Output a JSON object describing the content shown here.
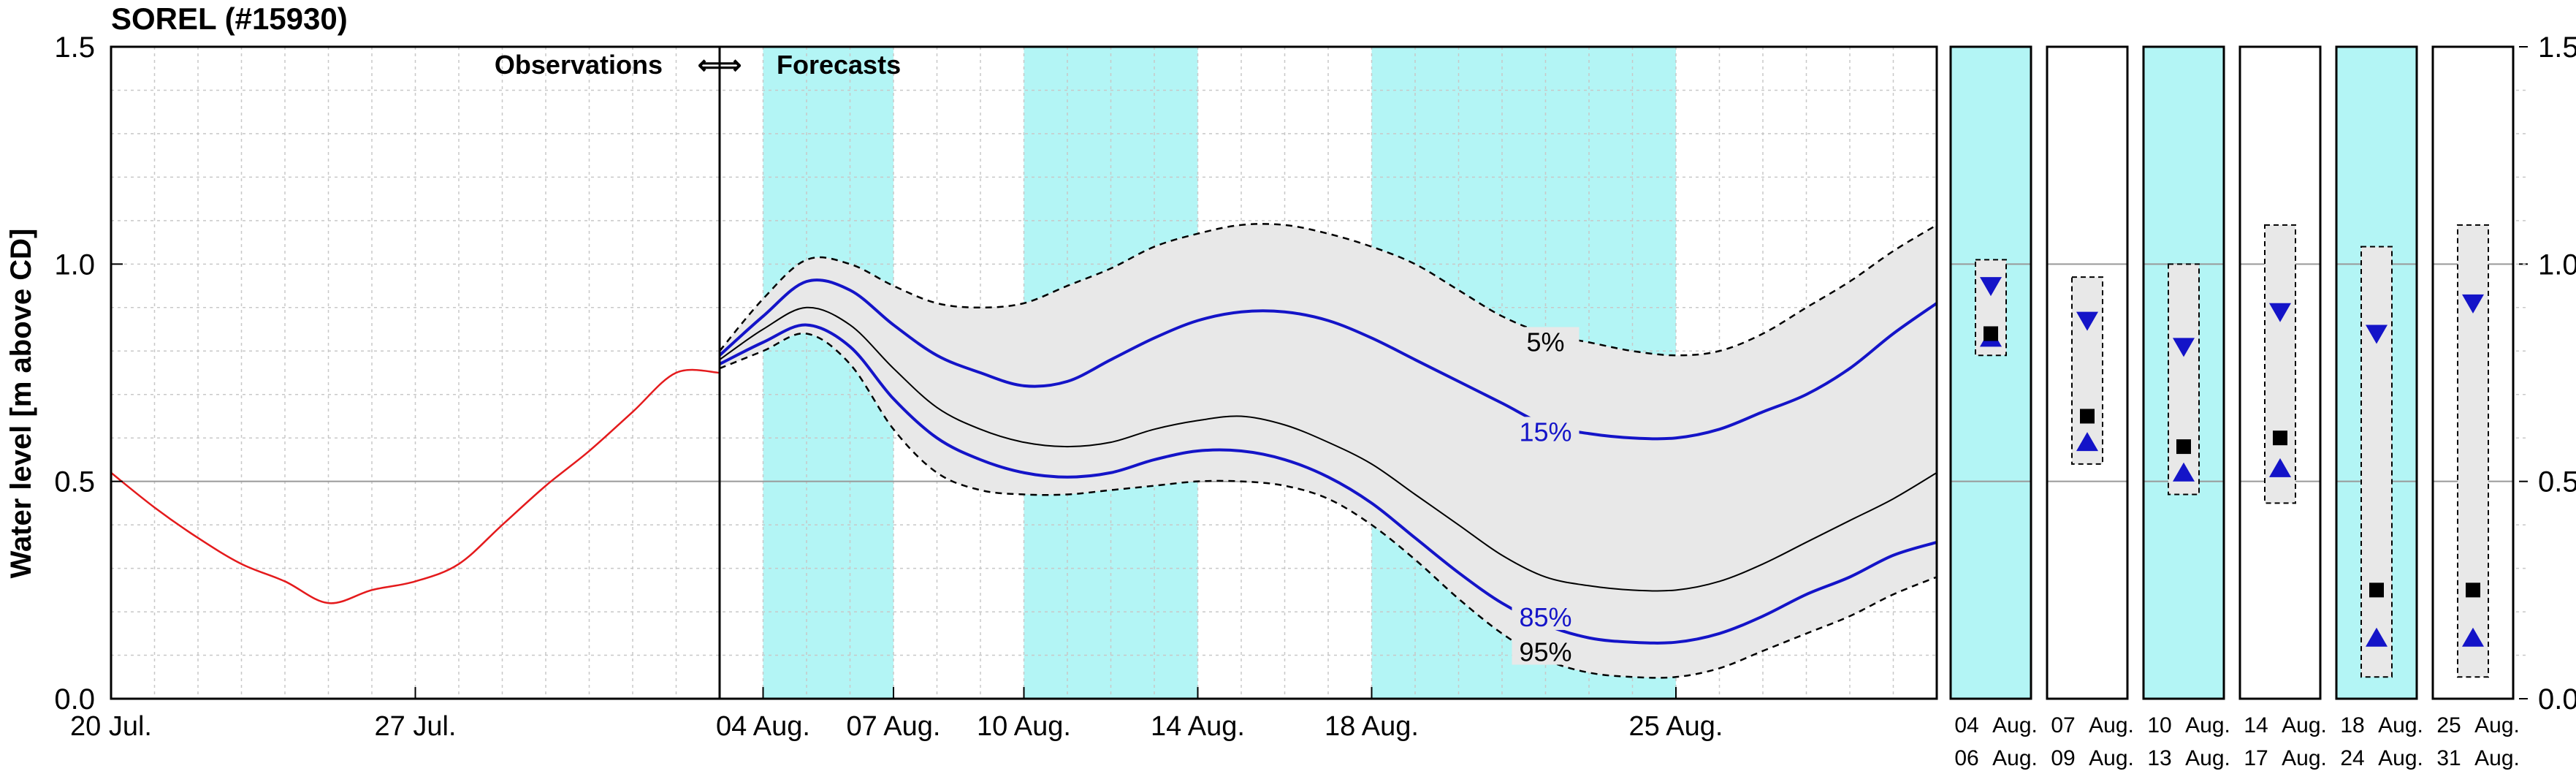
{
  "chart_data": {
    "type": "line",
    "title": "SOREL (#15930)",
    "ylabel": "Water level [m above CD]",
    "ylim": [
      0,
      1.5
    ],
    "yticks": [
      "0.0",
      "0.5",
      "1.0",
      "1.5"
    ],
    "grid": true,
    "divider_label": "Observations  ⇐⇒  Forecasts",
    "observations_label": "Observations",
    "arrows_label": "⇐⇒",
    "forecasts_label": "Forecasts",
    "colors": {
      "observed": "#e41a1c",
      "percentile_15_85": "#1414c8",
      "median": "#000000",
      "envelope_fill": "#e8e8e8",
      "period_shade": "#b3f5f5"
    },
    "x_axis": {
      "start": "2024-07-20",
      "end": "2024-08-31",
      "ticks": [
        {
          "date": "2024-07-20",
          "label": "20 Jul."
        },
        {
          "date": "2024-07-27",
          "label": "27 Jul."
        },
        {
          "date": "2024-08-04",
          "label": "04 Aug."
        },
        {
          "date": "2024-08-07",
          "label": "07 Aug."
        },
        {
          "date": "2024-08-10",
          "label": "10 Aug."
        },
        {
          "date": "2024-08-14",
          "label": "14 Aug."
        },
        {
          "date": "2024-08-18",
          "label": "18 Aug."
        },
        {
          "date": "2024-08-25",
          "label": "25 Aug."
        }
      ]
    },
    "forecast_start": "2024-08-03",
    "shaded_periods": [
      {
        "start": "2024-08-04",
        "end": "2024-08-07"
      },
      {
        "start": "2024-08-10",
        "end": "2024-08-14"
      },
      {
        "start": "2024-08-18",
        "end": "2024-08-25"
      }
    ],
    "series": [
      {
        "key": "observed",
        "x": [
          "2024-07-20",
          "2024-07-21",
          "2024-07-22",
          "2024-07-23",
          "2024-07-24",
          "2024-07-25",
          "2024-07-26",
          "2024-07-27",
          "2024-07-28",
          "2024-07-29",
          "2024-07-30",
          "2024-07-31",
          "2024-08-01",
          "2024-08-02",
          "2024-08-03"
        ],
        "values": [
          0.52,
          0.44,
          0.37,
          0.31,
          0.27,
          0.22,
          0.25,
          0.27,
          0.31,
          0.4,
          0.49,
          0.57,
          0.66,
          0.75,
          0.75
        ]
      },
      {
        "key": "p05",
        "name": "5%",
        "x": [
          "2024-08-03",
          "2024-08-04",
          "2024-08-05",
          "2024-08-06",
          "2024-08-07",
          "2024-08-08",
          "2024-08-09",
          "2024-08-10",
          "2024-08-11",
          "2024-08-12",
          "2024-08-13",
          "2024-08-14",
          "2024-08-15",
          "2024-08-16",
          "2024-08-17",
          "2024-08-18",
          "2024-08-19",
          "2024-08-20",
          "2024-08-21",
          "2024-08-22",
          "2024-08-23",
          "2024-08-24",
          "2024-08-25",
          "2024-08-26",
          "2024-08-27",
          "2024-08-28",
          "2024-08-29",
          "2024-08-30",
          "2024-08-31"
        ],
        "values": [
          0.8,
          0.92,
          1.01,
          1.0,
          0.95,
          0.91,
          0.9,
          0.91,
          0.95,
          0.99,
          1.04,
          1.07,
          1.09,
          1.09,
          1.07,
          1.04,
          1.0,
          0.94,
          0.88,
          0.84,
          0.82,
          0.8,
          0.79,
          0.8,
          0.84,
          0.9,
          0.96,
          1.03,
          1.09
        ]
      },
      {
        "key": "p15",
        "name": "15%",
        "x": [
          "2024-08-03",
          "2024-08-04",
          "2024-08-05",
          "2024-08-06",
          "2024-08-07",
          "2024-08-08",
          "2024-08-09",
          "2024-08-10",
          "2024-08-11",
          "2024-08-12",
          "2024-08-13",
          "2024-08-14",
          "2024-08-15",
          "2024-08-16",
          "2024-08-17",
          "2024-08-18",
          "2024-08-19",
          "2024-08-20",
          "2024-08-21",
          "2024-08-22",
          "2024-08-23",
          "2024-08-24",
          "2024-08-25",
          "2024-08-26",
          "2024-08-27",
          "2024-08-28",
          "2024-08-29",
          "2024-08-30",
          "2024-08-31"
        ],
        "values": [
          0.79,
          0.88,
          0.96,
          0.94,
          0.86,
          0.79,
          0.75,
          0.72,
          0.73,
          0.78,
          0.83,
          0.87,
          0.89,
          0.89,
          0.87,
          0.83,
          0.78,
          0.73,
          0.68,
          0.63,
          0.61,
          0.6,
          0.6,
          0.62,
          0.66,
          0.7,
          0.76,
          0.84,
          0.91
        ]
      },
      {
        "key": "p50",
        "x": [
          "2024-08-03",
          "2024-08-04",
          "2024-08-05",
          "2024-08-06",
          "2024-08-07",
          "2024-08-08",
          "2024-08-09",
          "2024-08-10",
          "2024-08-11",
          "2024-08-12",
          "2024-08-13",
          "2024-08-14",
          "2024-08-15",
          "2024-08-16",
          "2024-08-17",
          "2024-08-18",
          "2024-08-19",
          "2024-08-20",
          "2024-08-21",
          "2024-08-22",
          "2024-08-23",
          "2024-08-24",
          "2024-08-25",
          "2024-08-26",
          "2024-08-27",
          "2024-08-28",
          "2024-08-29",
          "2024-08-30",
          "2024-08-31"
        ],
        "values": [
          0.78,
          0.85,
          0.9,
          0.86,
          0.76,
          0.67,
          0.62,
          0.59,
          0.58,
          0.59,
          0.62,
          0.64,
          0.65,
          0.63,
          0.59,
          0.54,
          0.47,
          0.4,
          0.33,
          0.28,
          0.26,
          0.25,
          0.25,
          0.27,
          0.31,
          0.36,
          0.41,
          0.46,
          0.52
        ]
      },
      {
        "key": "p85",
        "name": "85%",
        "x": [
          "2024-08-03",
          "2024-08-04",
          "2024-08-05",
          "2024-08-06",
          "2024-08-07",
          "2024-08-08",
          "2024-08-09",
          "2024-08-10",
          "2024-08-11",
          "2024-08-12",
          "2024-08-13",
          "2024-08-14",
          "2024-08-15",
          "2024-08-16",
          "2024-08-17",
          "2024-08-18",
          "2024-08-19",
          "2024-08-20",
          "2024-08-21",
          "2024-08-22",
          "2024-08-23",
          "2024-08-24",
          "2024-08-25",
          "2024-08-26",
          "2024-08-27",
          "2024-08-28",
          "2024-08-29",
          "2024-08-30",
          "2024-08-31"
        ],
        "values": [
          0.77,
          0.82,
          0.86,
          0.81,
          0.69,
          0.6,
          0.55,
          0.52,
          0.51,
          0.52,
          0.55,
          0.57,
          0.57,
          0.55,
          0.51,
          0.45,
          0.37,
          0.29,
          0.22,
          0.17,
          0.14,
          0.13,
          0.13,
          0.15,
          0.19,
          0.24,
          0.28,
          0.33,
          0.36
        ]
      },
      {
        "key": "p95",
        "name": "95%",
        "x": [
          "2024-08-03",
          "2024-08-04",
          "2024-08-05",
          "2024-08-06",
          "2024-08-07",
          "2024-08-08",
          "2024-08-09",
          "2024-08-10",
          "2024-08-11",
          "2024-08-12",
          "2024-08-13",
          "2024-08-14",
          "2024-08-15",
          "2024-08-16",
          "2024-08-17",
          "2024-08-18",
          "2024-08-19",
          "2024-08-20",
          "2024-08-21",
          "2024-08-22",
          "2024-08-23",
          "2024-08-24",
          "2024-08-25",
          "2024-08-26",
          "2024-08-27",
          "2024-08-28",
          "2024-08-29",
          "2024-08-30",
          "2024-08-31"
        ],
        "values": [
          0.76,
          0.8,
          0.84,
          0.77,
          0.62,
          0.52,
          0.48,
          0.47,
          0.47,
          0.48,
          0.49,
          0.5,
          0.5,
          0.49,
          0.46,
          0.4,
          0.32,
          0.23,
          0.15,
          0.09,
          0.06,
          0.05,
          0.05,
          0.07,
          0.11,
          0.15,
          0.19,
          0.24,
          0.28
        ]
      }
    ],
    "period_summaries": [
      {
        "label_top": [
          "04",
          "Aug."
        ],
        "label_bottom": [
          "06",
          "Aug."
        ],
        "shaded": true,
        "p05": 1.01,
        "p95": 0.79,
        "p15": 0.95,
        "median": 0.84,
        "p85": 0.83
      },
      {
        "label_top": [
          "07",
          "Aug."
        ],
        "label_bottom": [
          "09",
          "Aug."
        ],
        "shaded": false,
        "p05": 0.97,
        "p95": 0.54,
        "p15": 0.87,
        "median": 0.65,
        "p85": 0.59
      },
      {
        "label_top": [
          "10",
          "Aug."
        ],
        "label_bottom": [
          "13",
          "Aug."
        ],
        "shaded": true,
        "p05": 1.0,
        "p95": 0.47,
        "p15": 0.81,
        "median": 0.58,
        "p85": 0.52
      },
      {
        "label_top": [
          "14",
          "Aug."
        ],
        "label_bottom": [
          "17",
          "Aug."
        ],
        "shaded": false,
        "p05": 1.09,
        "p95": 0.45,
        "p15": 0.89,
        "median": 0.6,
        "p85": 0.53
      },
      {
        "label_top": [
          "18",
          "Aug."
        ],
        "label_bottom": [
          "24",
          "Aug."
        ],
        "shaded": true,
        "p05": 1.04,
        "p95": 0.05,
        "p15": 0.84,
        "median": 0.25,
        "p85": 0.14
      },
      {
        "label_top": [
          "25",
          "Aug."
        ],
        "label_bottom": [
          "31",
          "Aug."
        ],
        "shaded": false,
        "p05": 1.09,
        "p95": 0.05,
        "p15": 0.91,
        "median": 0.25,
        "p85": 0.14
      }
    ]
  }
}
